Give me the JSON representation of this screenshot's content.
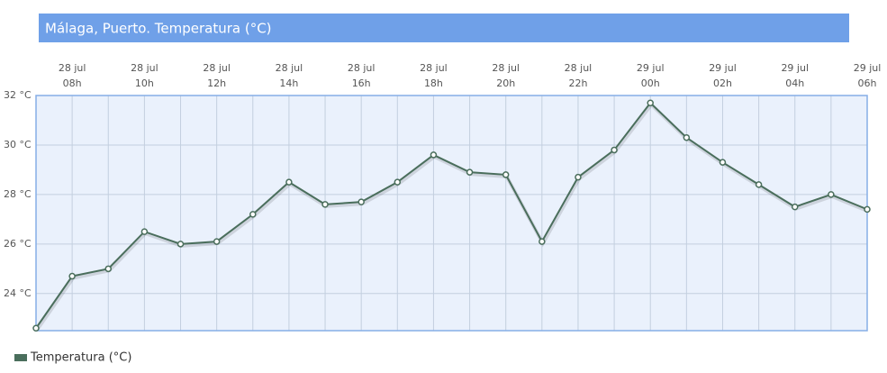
{
  "chart_data": {
    "type": "line",
    "title": "Málaga, Puerto. Temperatura (°C)",
    "categories": [
      null,
      [
        "28 jul",
        "08h"
      ],
      null,
      [
        "28 jul",
        "10h"
      ],
      null,
      [
        "28 jul",
        "12h"
      ],
      null,
      [
        "28 jul",
        "14h"
      ],
      null,
      [
        "28 jul",
        "16h"
      ],
      null,
      [
        "28 jul",
        "18h"
      ],
      null,
      [
        "28 jul",
        "20h"
      ],
      null,
      [
        "28 jul",
        "22h"
      ],
      null,
      [
        "29 jul",
        "00h"
      ],
      null,
      [
        "29 jul",
        "02h"
      ],
      null,
      [
        "29 jul",
        "04h"
      ],
      null,
      [
        "29 jul",
        "06h"
      ]
    ],
    "series": [
      {
        "name": "Temperatura (°C)",
        "color": "#4a6e5c",
        "values": [
          22.6,
          24.7,
          25.0,
          26.5,
          26.0,
          26.1,
          27.2,
          28.5,
          27.6,
          27.7,
          28.5,
          29.6,
          28.9,
          28.8,
          26.1,
          28.7,
          29.8,
          31.7,
          30.3,
          29.3,
          28.4,
          27.5,
          28.0,
          27.4
        ]
      }
    ],
    "ylim": [
      22.5,
      32
    ],
    "yticks": [
      {
        "value": 24,
        "label": "24 °C"
      },
      {
        "value": 26,
        "label": "26 °C"
      },
      {
        "value": 28,
        "label": "28 °C"
      },
      {
        "value": 30,
        "label": "30 °C"
      },
      {
        "value": 32,
        "label": "32 °C"
      }
    ],
    "grid": true
  }
}
